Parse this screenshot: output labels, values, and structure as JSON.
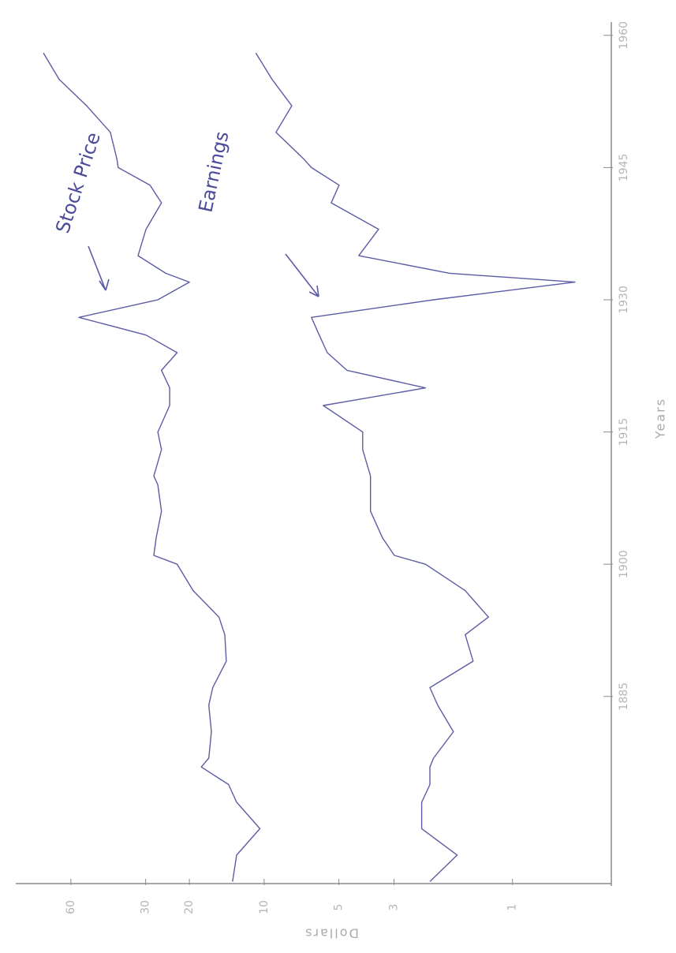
{
  "chart_data": {
    "type": "line",
    "x_label": "Years",
    "y_label": "Dollars",
    "x": [
      1864,
      1867,
      1870,
      1873,
      1875,
      1877,
      1878,
      1881,
      1884,
      1886,
      1889,
      1892,
      1894,
      1897,
      1900,
      1901,
      1903,
      1906,
      1909,
      1910,
      1913,
      1915,
      1918,
      1920,
      1922,
      1924,
      1926,
      1928,
      1930,
      1932,
      1933,
      1935,
      1938,
      1941,
      1943,
      1945,
      1946,
      1949,
      1952,
      1955,
      1958
    ],
    "series": [
      {
        "name": "Stock Price",
        "color": "#5c5ca6",
        "values": [
          13.4,
          12.9,
          10.4,
          12.9,
          13.9,
          17.9,
          16.7,
          16.3,
          16.7,
          16.1,
          14.2,
          14.4,
          15.2,
          19.3,
          22.4,
          27.8,
          27.2,
          25.9,
          26.8,
          27.8,
          25.9,
          26.8,
          24.0,
          24.0,
          25.9,
          22.4,
          29.9,
          55.7,
          26.8,
          20.0,
          24.9,
          32.2,
          29.9,
          25.9,
          28.8,
          38.7,
          39.2,
          41.6,
          51.8,
          66.9,
          77.4
        ]
      },
      {
        "name": "Earnings",
        "color": "#5c5ca6",
        "values": [
          2.15,
          1.67,
          2.32,
          2.32,
          2.15,
          2.15,
          2.08,
          1.73,
          2.0,
          2.15,
          1.44,
          1.55,
          1.25,
          1.55,
          2.24,
          2.99,
          3.34,
          3.73,
          3.73,
          3.73,
          4.01,
          4.01,
          5.78,
          2.24,
          4.64,
          5.57,
          6.0,
          6.45,
          2.08,
          0.56,
          1.79,
          4.16,
          3.46,
          5.37,
          4.99,
          6.45,
          6.94,
          8.96,
          7.74,
          9.29,
          10.8
        ]
      }
    ],
    "xlim": [
      1863.5,
      1961.5
    ],
    "xticks": [
      1885,
      1900,
      1915,
      1930,
      1945,
      1960
    ],
    "ylim": [
      0.4,
      100
    ],
    "yticks": [
      1,
      3,
      5,
      10,
      20,
      30,
      60
    ],
    "log_y": true,
    "grid": false
  }
}
